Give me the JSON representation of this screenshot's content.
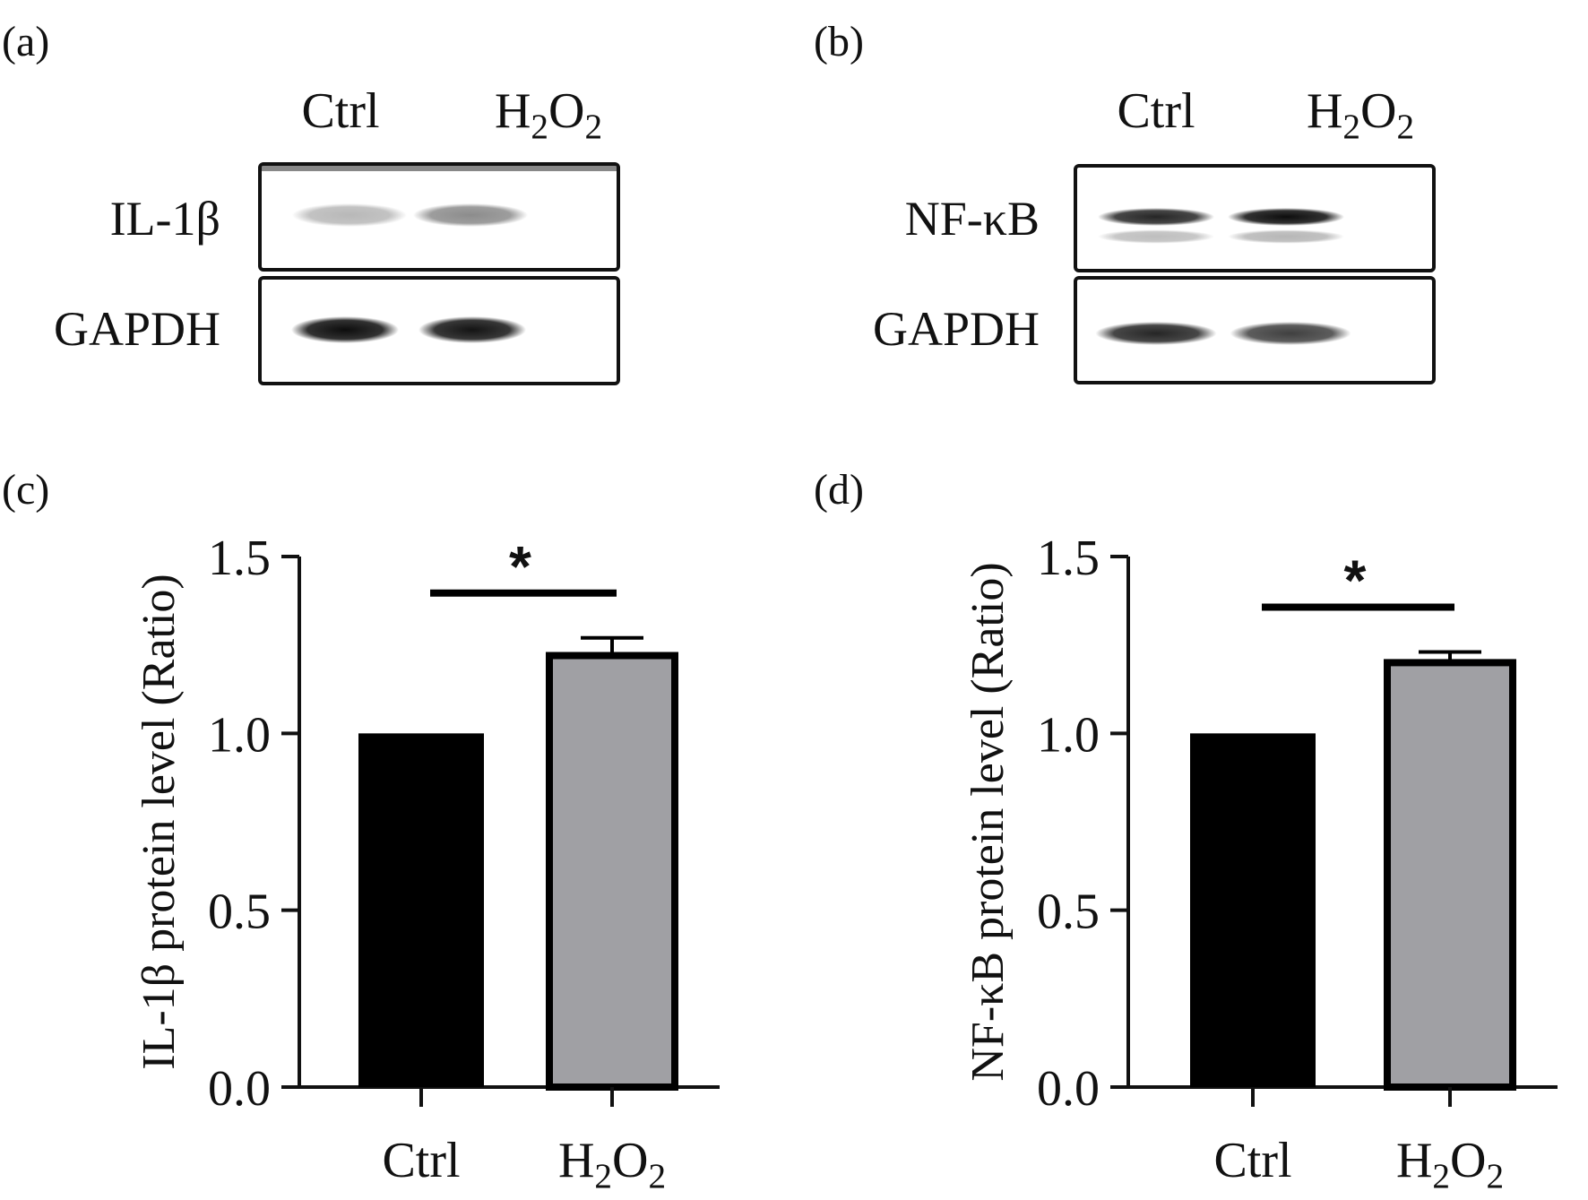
{
  "figure": {
    "panel_a": {
      "label": "(a)",
      "lanes": [
        {
          "base": "Ctrl"
        },
        {
          "base": "H",
          "sub1": "2",
          "mid": "O",
          "sub2": "2"
        }
      ],
      "blots": [
        {
          "protein": "IL-1β",
          "band_intensity": [
            0.28,
            0.45
          ]
        },
        {
          "protein": "GAPDH",
          "band_intensity": [
            0.95,
            0.92
          ]
        }
      ]
    },
    "panel_b": {
      "label": "(b)",
      "lanes": [
        {
          "base": "Ctrl"
        },
        {
          "base": "H",
          "sub1": "2",
          "mid": "O",
          "sub2": "2"
        }
      ],
      "blots": [
        {
          "protein": "NF-κB",
          "band_intensity": [
            0.85,
            0.95
          ]
        },
        {
          "protein": "GAPDH",
          "band_intensity": [
            0.85,
            0.75
          ]
        }
      ]
    }
  },
  "chart_data": [
    {
      "panel": "(c)",
      "type": "bar",
      "categories": [
        "Ctrl",
        "H2O2"
      ],
      "category_labels": [
        {
          "base": "Ctrl"
        },
        {
          "base": "H",
          "sub1": "2",
          "mid": "O",
          "sub2": "2"
        }
      ],
      "values": [
        1.0,
        1.22
      ],
      "error": [
        0,
        0.05
      ],
      "bar_colors": [
        "#000000",
        "#a0a0a4"
      ],
      "ylabel": "IL-1β protein level (Ratio)",
      "ylim": [
        0,
        1.5
      ],
      "yticks": [
        "0.0",
        "0.5",
        "1.0",
        "1.5"
      ],
      "significance": "*"
    },
    {
      "panel": "(d)",
      "type": "bar",
      "categories": [
        "Ctrl",
        "H2O2"
      ],
      "category_labels": [
        {
          "base": "Ctrl"
        },
        {
          "base": "H",
          "sub1": "2",
          "mid": "O",
          "sub2": "2"
        }
      ],
      "values": [
        1.0,
        1.2
      ],
      "error": [
        0,
        0.03
      ],
      "bar_colors": [
        "#000000",
        "#a0a0a4"
      ],
      "ylabel": "NF-κB protein level (Ratio)",
      "ylim": [
        0,
        1.5
      ],
      "yticks": [
        "0.0",
        "0.5",
        "1.0",
        "1.5"
      ],
      "significance": "*"
    }
  ]
}
